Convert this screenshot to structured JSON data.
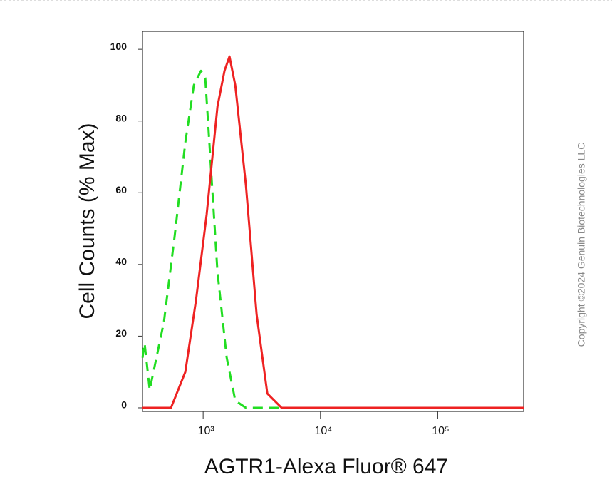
{
  "chart_data": {
    "type": "line",
    "xlabel": "AGTR1-Alexa Fluor® 647",
    "ylabel": "Cell Counts (% Max)",
    "copyright": "Copyright ©2024 Genuin Biotechnologies LLC",
    "xscale": "log",
    "xlim": [
      304,
      540000
    ],
    "ylim": [
      -1,
      105
    ],
    "xticks": [
      {
        "value": 1000,
        "label": "10³"
      },
      {
        "value": 10000,
        "label": "10⁴"
      },
      {
        "value": 100000,
        "label": "10⁵"
      }
    ],
    "yticks": [
      0,
      20,
      40,
      60,
      80,
      100
    ],
    "series": [
      {
        "color": "#22dd22",
        "dash": true,
        "x": [
          304,
          317,
          350,
          463,
          572,
          705,
          833,
          959,
          1042,
          1150,
          1323,
          1587,
          1878,
          2317,
          540000
        ],
        "values": [
          14,
          18,
          5,
          24,
          48,
          74,
          90,
          94,
          92,
          70,
          38,
          14,
          2,
          0,
          0
        ]
      },
      {
        "color": "#ee2222",
        "dash": false,
        "x": [
          304,
          532,
          705,
          869,
          1072,
          1323,
          1521,
          1678,
          1878,
          2317,
          2856,
          3524,
          4668,
          540000
        ],
        "values": [
          0,
          0,
          10,
          30,
          54,
          84,
          94,
          98,
          90,
          62,
          26,
          4,
          0,
          0
        ]
      }
    ]
  }
}
